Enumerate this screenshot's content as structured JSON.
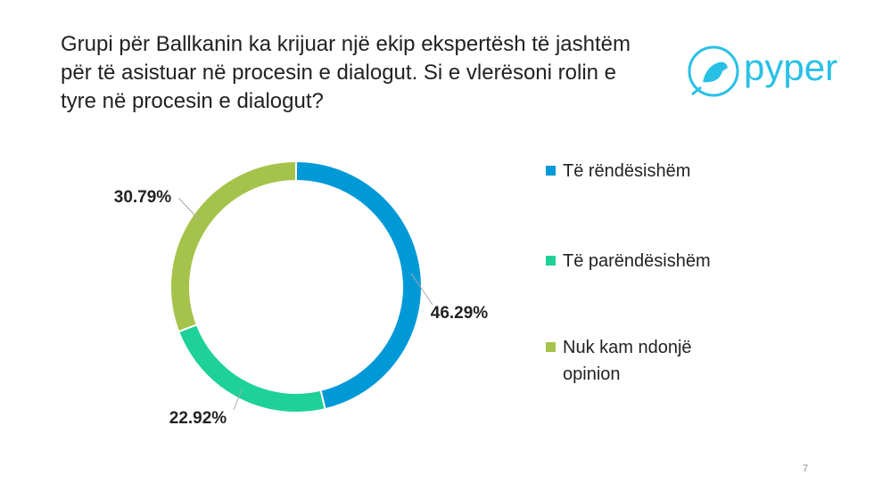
{
  "chart_data": {
    "type": "donut",
    "title": "Grupi për Ballkanin ka krijuar një ekip ekspertësh të jashtëm për të asistuar në procesin e dialogut. Si e vlerësoni rolin e tyre në procesin e dialogut?",
    "categories": [
      "Të rëndësishëm",
      "Të parëndësishëm",
      "Nuk kam ndonjë opinion"
    ],
    "values": [
      46.29,
      22.92,
      30.79
    ],
    "value_labels": [
      "46.29%",
      "22.92%",
      "30.79%"
    ],
    "colors": [
      "#0099d8",
      "#1ed198",
      "#a5c34a"
    ],
    "legend": "right"
  },
  "logo": "pyper",
  "page_number": "7"
}
